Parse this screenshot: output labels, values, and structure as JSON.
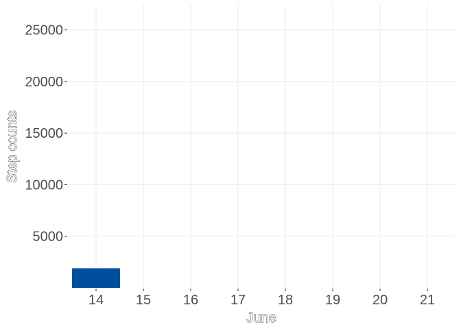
{
  "chart_data": {
    "type": "bar",
    "title": "",
    "xlabel": "June",
    "ylabel": "Step counts",
    "categories": [
      "14",
      "15",
      "16",
      "17",
      "18",
      "19",
      "20",
      "21"
    ],
    "values": [
      1900,
      null,
      null,
      null,
      null,
      null,
      null,
      null
    ],
    "x_ticks": [
      "14",
      "15",
      "16",
      "17",
      "18",
      "19",
      "20",
      "21"
    ],
    "y_ticks": [
      5000,
      10000,
      15000,
      20000,
      25000
    ],
    "ylim": [
      0,
      27500
    ],
    "grid": true,
    "legend": "none",
    "bar_color": "#004f9f"
  }
}
